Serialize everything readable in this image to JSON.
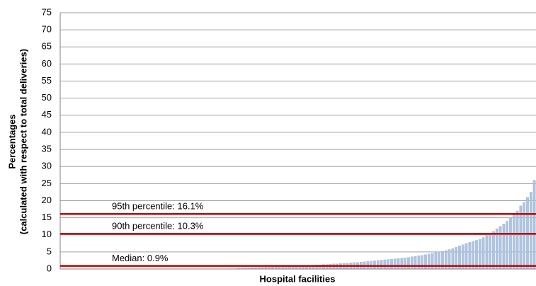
{
  "chart_data": {
    "type": "bar",
    "x_label": "Hospital facilities",
    "y_label": [
      "Percentages",
      "(calculated with respect to total deliveries)"
    ],
    "categories": [
      null,
      null,
      null,
      null,
      null,
      null,
      null,
      null,
      null,
      null,
      null,
      null,
      null,
      null,
      null,
      null,
      null,
      null,
      null,
      null,
      null,
      null,
      null,
      null,
      null,
      null,
      null,
      null,
      null,
      null,
      null,
      null,
      null,
      null,
      null,
      null,
      null,
      null,
      null,
      null,
      null,
      null,
      null,
      null,
      null,
      null,
      null,
      null,
      null,
      null,
      null,
      null,
      null,
      null,
      null,
      null,
      null,
      null,
      null,
      null,
      null,
      null,
      null,
      null,
      null,
      null,
      null,
      null,
      null,
      null,
      null,
      null,
      null,
      null,
      null,
      null,
      null,
      null,
      null,
      null,
      null,
      null,
      null,
      null,
      null,
      null,
      null,
      null,
      null,
      null,
      null,
      null,
      null,
      null,
      null,
      null,
      null,
      null,
      null,
      null,
      null,
      null,
      null,
      null,
      null,
      null,
      null,
      null,
      null,
      null,
      null,
      null,
      null,
      null,
      null,
      null,
      null,
      null,
      null,
      null,
      null,
      null,
      null,
      null,
      null,
      null,
      null,
      null,
      null,
      null,
      null,
      null,
      null,
      null,
      null,
      null,
      null,
      null,
      null,
      null
    ],
    "values": [
      0,
      0,
      0,
      0,
      0,
      0,
      0,
      0,
      0,
      0,
      0,
      0,
      0,
      0,
      0,
      0,
      0,
      0,
      0,
      0,
      0,
      0,
      0,
      0,
      0,
      0,
      0,
      0,
      0,
      0,
      0,
      0,
      0,
      0,
      0,
      0,
      0,
      0,
      0,
      0,
      0,
      0,
      0,
      0,
      0,
      0,
      0,
      0,
      0,
      0,
      0.1,
      0.1,
      0.2,
      0.2,
      0.3,
      0.3,
      0.4,
      0.4,
      0.5,
      0.5,
      0.6,
      0.6,
      0.6,
      0.7,
      0.7,
      0.7,
      0.8,
      0.8,
      0.8,
      0.9,
      0.9,
      1.0,
      1.0,
      1.1,
      1.1,
      1.2,
      1.2,
      1.3,
      1.3,
      1.4,
      1.5,
      1.5,
      1.6,
      1.7,
      1.7,
      1.8,
      1.9,
      1.9,
      2.0,
      2.1,
      2.2,
      2.3,
      2.4,
      2.5,
      2.6,
      2.7,
      2.8,
      2.9,
      3.0,
      3.1,
      3.2,
      3.3,
      3.4,
      3.6,
      3.7,
      3.9,
      4.0,
      4.2,
      4.4,
      4.6,
      4.8,
      5.0,
      5.2,
      5.4,
      5.7,
      6.0,
      6.4,
      6.8,
      7.1,
      7.5,
      7.8,
      8.1,
      8.4,
      8.7,
      9.2,
      9.8,
      10.3,
      11.0,
      11.8,
      12.5,
      13.2,
      14.0,
      15.0,
      16.1,
      17.0,
      18.5,
      19.5,
      21.0,
      22.5,
      26.0
    ],
    "color": "#aec4e0",
    "ylim": [
      0,
      75
    ],
    "yticks": [
      0,
      5,
      10,
      15,
      20,
      25,
      30,
      35,
      40,
      45,
      50,
      55,
      60,
      65,
      70,
      75
    ],
    "grid": true,
    "reference_lines": [
      {
        "label": "95th percentile: 16.1%",
        "value": 16.1
      },
      {
        "label": "90th percentile: 10.3%",
        "value": 10.3
      },
      {
        "label": "Median: 0.9%",
        "value": 0.9
      }
    ],
    "reference_color": "#c00000"
  }
}
